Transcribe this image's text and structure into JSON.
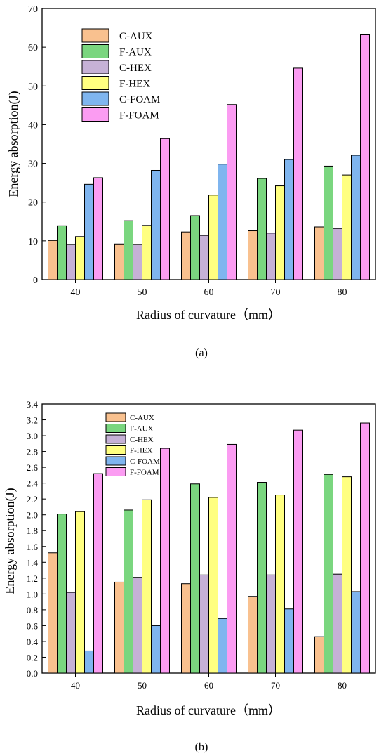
{
  "chart_data": [
    {
      "type": "bar",
      "panel_label": "(a)",
      "xlabel": "Radius of curvature（mm）",
      "ylabel": "Energy absorption(J)",
      "categories": [
        "40",
        "50",
        "60",
        "70",
        "80"
      ],
      "ylim": [
        0,
        70
      ],
      "yticks": [
        "0",
        "10",
        "20",
        "30",
        "40",
        "50",
        "60",
        "70"
      ],
      "legend_position": "top-left",
      "series": [
        {
          "name": "C-AUX",
          "color": "#f9c18f",
          "values": [
            10.1,
            9.2,
            12.3,
            12.6,
            13.6
          ]
        },
        {
          "name": "F-AUX",
          "color": "#7ad67f",
          "values": [
            13.9,
            15.2,
            16.5,
            26.1,
            29.3
          ]
        },
        {
          "name": "C-HEX",
          "color": "#c6b1d6",
          "values": [
            9.1,
            9.1,
            11.4,
            12.0,
            13.2
          ]
        },
        {
          "name": "F-HEX",
          "color": "#ffff80",
          "values": [
            11.1,
            14.0,
            21.8,
            24.2,
            27.0
          ]
        },
        {
          "name": "C-FOAM",
          "color": "#7fb5ef",
          "values": [
            24.6,
            28.2,
            29.8,
            31.0,
            32.1
          ]
        },
        {
          "name": "F-FOAM",
          "color": "#fb9cf2",
          "values": [
            26.3,
            36.4,
            45.2,
            54.6,
            63.2
          ]
        }
      ]
    },
    {
      "type": "bar",
      "panel_label": "(b)",
      "xlabel": "Radius of curvature（mm）",
      "ylabel": "Energy absorption(J)",
      "categories": [
        "40",
        "50",
        "60",
        "70",
        "80"
      ],
      "ylim": [
        0,
        3.4
      ],
      "yticks": [
        "0.0",
        "0.2",
        "0.4",
        "0.6",
        "0.8",
        "1.0",
        "1.2",
        "1.4",
        "1.6",
        "1.8",
        "2.0",
        "2.2",
        "2.4",
        "2.6",
        "2.8",
        "3.0",
        "3.2",
        "3.4"
      ],
      "legend_position": "top-left",
      "series": [
        {
          "name": "C-AUX",
          "color": "#f9c18f",
          "values": [
            1.52,
            1.15,
            1.13,
            0.97,
            0.46
          ]
        },
        {
          "name": "F-AUX",
          "color": "#7ad67f",
          "values": [
            2.01,
            2.06,
            2.39,
            2.41,
            2.51
          ]
        },
        {
          "name": "C-HEX",
          "color": "#c6b1d6",
          "values": [
            1.02,
            1.21,
            1.24,
            1.24,
            1.25
          ]
        },
        {
          "name": "F-HEX",
          "color": "#ffff80",
          "values": [
            2.04,
            2.19,
            2.22,
            2.25,
            2.48
          ]
        },
        {
          "name": "C-FOAM",
          "color": "#7fb5ef",
          "values": [
            0.28,
            0.6,
            0.69,
            0.81,
            1.03
          ]
        },
        {
          "name": "F-FOAM",
          "color": "#fb9cf2",
          "values": [
            2.52,
            2.84,
            2.89,
            3.07,
            3.16
          ]
        }
      ]
    }
  ]
}
